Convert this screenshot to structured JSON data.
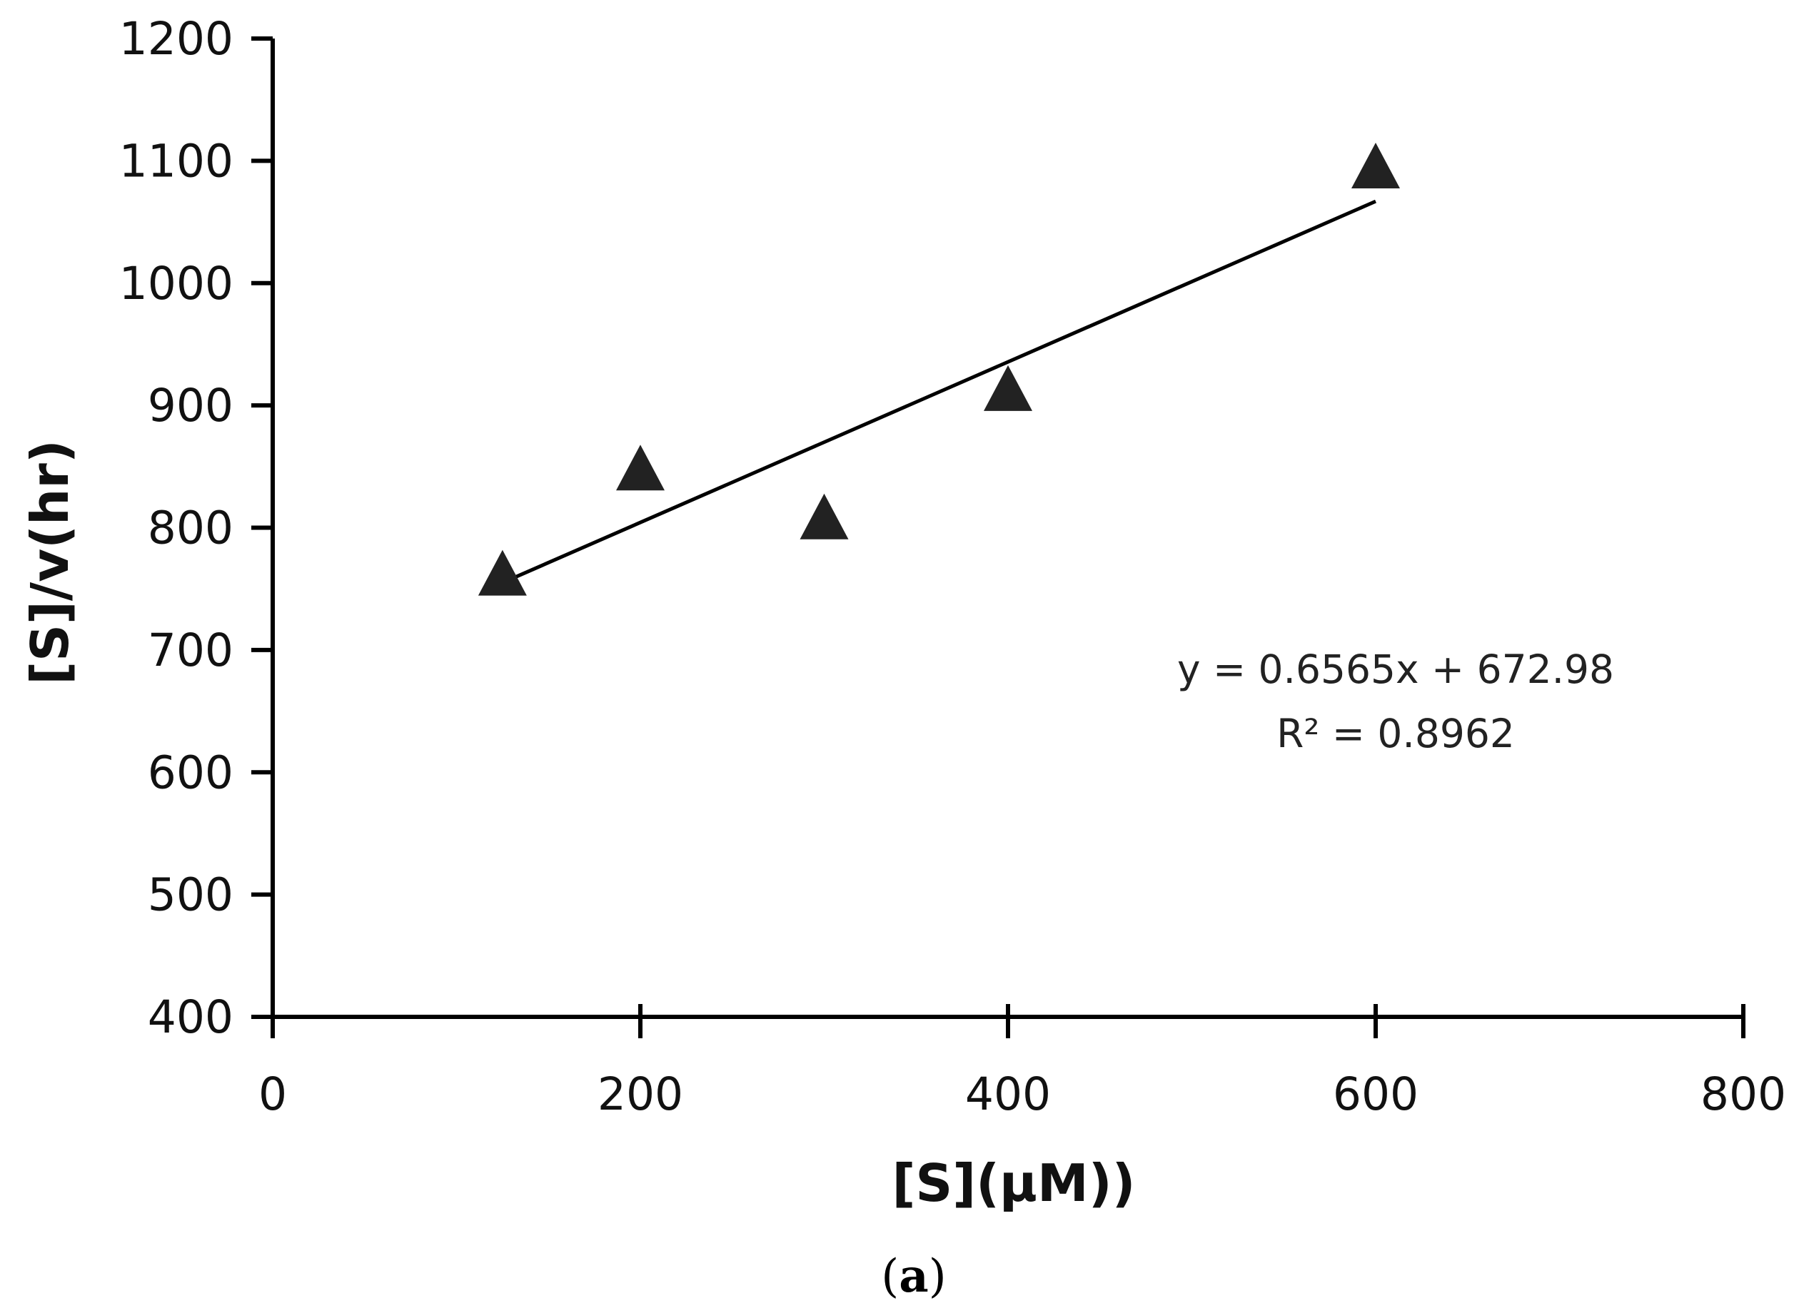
{
  "chart_data": {
    "type": "scatter",
    "xlabel": "[S](μM))",
    "ylabel": "[S]/v(hr)",
    "xlim": [
      0,
      800
    ],
    "ylim": [
      400,
      1200
    ],
    "x_ticks": [
      0,
      200,
      400,
      600,
      800
    ],
    "y_ticks": [
      400,
      500,
      600,
      700,
      800,
      900,
      1000,
      1100,
      1200
    ],
    "grid": false,
    "legend": "none",
    "marker": "triangle",
    "series": [
      {
        "points": [
          {
            "x": 125,
            "y": 762
          },
          {
            "x": 200,
            "y": 848
          },
          {
            "x": 300,
            "y": 808
          },
          {
            "x": 400,
            "y": 913
          },
          {
            "x": 600,
            "y": 1095
          }
        ]
      }
    ],
    "trendline": {
      "x_start": 125,
      "x_end": 600,
      "slope": 0.6565,
      "intercept": 672.98,
      "equation": "y = 0.6565x + 672.98",
      "r_squared": "R² = 0.8962"
    },
    "panel_label": {
      "open": "(",
      "letter": "a",
      "close": ")"
    },
    "colors": {
      "axis": "#000000",
      "marker": "#222222",
      "trendline": "#000000",
      "text": "#111111"
    }
  }
}
